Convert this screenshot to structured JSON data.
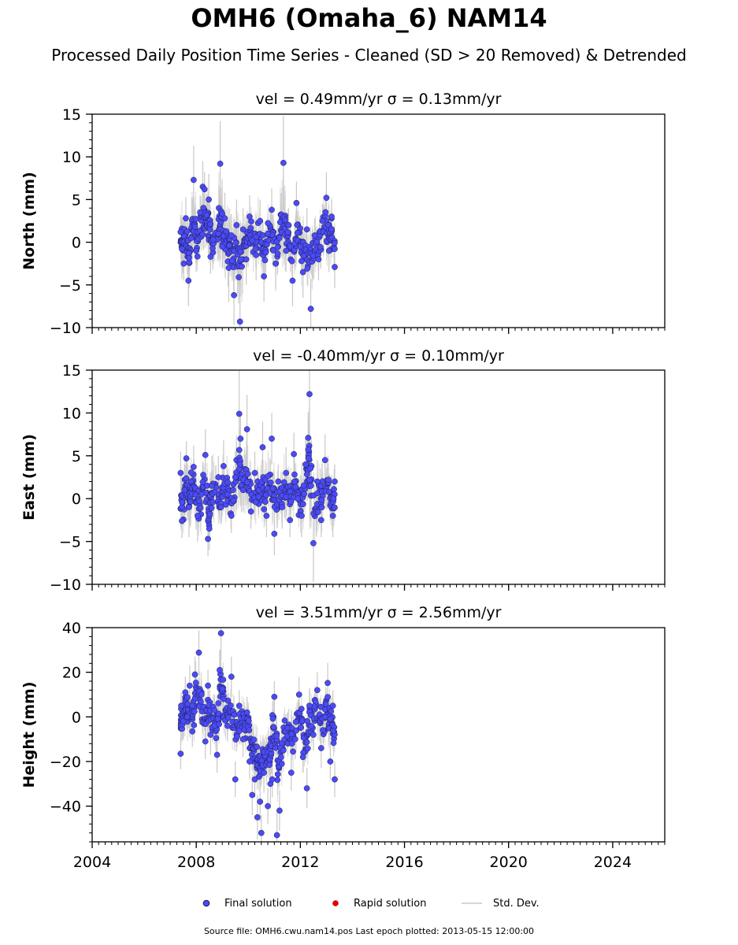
{
  "title": "OMH6 (Omaha_6) NAM14",
  "subtitle": "Processed Daily Position Time Series - Cleaned (SD > 20 Removed) & Detrended",
  "colors": {
    "final": "#4b4bf5",
    "rapid": "#e00000",
    "stddev": "#c8c8c8",
    "edge": "#1a1a4d"
  },
  "legend": {
    "final": "Final solution",
    "rapid": "Rapid solution",
    "stddev": "Std. Dev."
  },
  "footer": "Source file: OMH6.cwu.nam14.pos  Last epoch plotted: 2013-05-15 12:00:00",
  "chart_data": [
    {
      "type": "scatter",
      "component": "north",
      "panel_title": "vel = 0.49mm/yr   σ = 0.13mm/yr",
      "ylabel": "North (mm)",
      "xlim": [
        2004,
        2026
      ],
      "ylim": [
        -10,
        15
      ],
      "yticks": [
        -10,
        -5,
        0,
        5,
        10,
        15
      ],
      "ytick_labels": [
        "−10",
        "−5",
        "0",
        "5",
        "10",
        "15"
      ],
      "xticks": [
        2004,
        2008,
        2012,
        2016,
        2020,
        2024
      ],
      "xtick_labels": [],
      "series": [
        {
          "name": "Final solution",
          "x": [
            2007.4,
            2007.45,
            2007.52,
            2007.6,
            2007.7,
            2007.8,
            2007.9,
            2008.0,
            2008.15,
            2008.25,
            2008.32,
            2008.4,
            2008.48,
            2008.55,
            2008.65,
            2008.85,
            2008.92,
            2009.0,
            2009.1,
            2009.25,
            2009.35,
            2009.45,
            2009.55,
            2009.68,
            2009.8,
            2009.92,
            2010.05,
            2010.15,
            2010.3,
            2010.45,
            2010.6,
            2010.75,
            2010.9,
            2011.05,
            2011.2,
            2011.35,
            2011.45,
            2011.55,
            2011.7,
            2011.85,
            2012.0,
            2012.1,
            2012.25,
            2012.4,
            2012.55,
            2012.7,
            2012.85,
            2013.0,
            2013.1,
            2013.2,
            2013.32
          ],
          "y": [
            1.2,
            -0.8,
            -2.5,
            2.8,
            -4.5,
            0.5,
            7.3,
            -1.0,
            3.5,
            6.5,
            6.2,
            3.2,
            5.0,
            -1.7,
            0.3,
            1.0,
            9.2,
            -0.5,
            2.8,
            -3.0,
            0.8,
            -6.2,
            2.0,
            -9.3,
            1.5,
            -2.0,
            3.0,
            0.2,
            -1.5,
            2.5,
            -4.0,
            1.0,
            3.8,
            -2.5,
            0.5,
            9.3,
            -1.0,
            2.0,
            -4.5,
            4.6,
            -0.5,
            -3.5,
            1.5,
            -7.8,
            0.8,
            -2.0,
            2.5,
            5.2,
            -1.0,
            3.0,
            -2.9
          ],
          "sd": [
            2.0,
            3.5,
            2.0,
            2.5,
            3.0,
            2.0,
            4.0,
            2.5,
            2.0,
            3.0,
            2.0,
            2.5,
            3.0,
            2.0,
            2.5,
            3.0,
            5.0,
            2.5,
            3.0,
            4.0,
            2.5,
            3.5,
            3.0,
            5.0,
            2.5,
            3.0,
            2.5,
            2.0,
            3.0,
            2.5,
            3.0,
            2.0,
            2.5,
            3.0,
            2.5,
            5.5,
            2.5,
            2.0,
            3.0,
            2.5,
            2.0,
            3.0,
            2.5,
            3.5,
            2.0,
            2.5,
            2.0,
            3.0,
            2.5,
            2.0,
            2.5
          ]
        },
        {
          "name": "Rapid solution",
          "x": [],
          "y": []
        }
      ]
    },
    {
      "type": "scatter",
      "component": "east",
      "panel_title": "vel = -0.40mm/yr   σ = 0.10mm/yr",
      "ylabel": "East (mm)",
      "xlim": [
        2004,
        2026
      ],
      "ylim": [
        -10,
        15
      ],
      "yticks": [
        -10,
        -5,
        0,
        5,
        10,
        15
      ],
      "ytick_labels": [
        "−10",
        "−5",
        "0",
        "5",
        "10",
        "15"
      ],
      "xticks": [
        2004,
        2008,
        2012,
        2016,
        2020,
        2024
      ],
      "xtick_labels": [],
      "series": [
        {
          "name": "Final solution",
          "x": [
            2007.4,
            2007.45,
            2007.55,
            2007.62,
            2007.72,
            2007.8,
            2007.9,
            2008.05,
            2008.2,
            2008.35,
            2008.45,
            2008.5,
            2008.6,
            2008.85,
            2008.95,
            2009.05,
            2009.2,
            2009.35,
            2009.5,
            2009.65,
            2009.7,
            2009.8,
            2009.95,
            2010.1,
            2010.25,
            2010.4,
            2010.55,
            2010.7,
            2010.9,
            2011.0,
            2011.15,
            2011.3,
            2011.45,
            2011.6,
            2011.75,
            2011.9,
            2012.05,
            2012.2,
            2012.3,
            2012.35,
            2012.5,
            2012.65,
            2012.8,
            2012.95,
            2013.1,
            2013.25,
            2013.32
          ],
          "y": [
            3.0,
            -2.6,
            1.0,
            4.7,
            -1.0,
            2.0,
            3.7,
            -2.0,
            0.5,
            5.1,
            -4.7,
            -3.5,
            1.5,
            2.5,
            -1.0,
            3.8,
            0.5,
            -2.0,
            2.5,
            9.9,
            7.0,
            1.0,
            8.1,
            -1.5,
            3.0,
            0.2,
            6.0,
            -2.0,
            7.0,
            -4.1,
            2.0,
            -1.0,
            3.0,
            -2.5,
            5.2,
            0.0,
            -2.0,
            4.0,
            7.1,
            12.2,
            -5.2,
            2.0,
            -2.5,
            4.5,
            0.8,
            -2.0,
            2.0
          ],
          "sd": [
            2.5,
            2.0,
            3.0,
            2.0,
            3.5,
            2.0,
            2.5,
            3.0,
            2.0,
            3.0,
            2.0,
            2.5,
            3.5,
            2.5,
            2.0,
            3.0,
            2.5,
            2.0,
            3.0,
            5.0,
            3.0,
            2.5,
            4.0,
            2.0,
            2.5,
            2.0,
            3.0,
            2.5,
            3.0,
            2.5,
            2.0,
            2.5,
            3.0,
            2.0,
            2.5,
            2.0,
            2.5,
            3.0,
            3.0,
            6.0,
            4.5,
            2.5,
            2.0,
            3.0,
            2.0,
            2.5,
            2.0
          ]
        },
        {
          "name": "Rapid solution",
          "x": [],
          "y": []
        }
      ]
    },
    {
      "type": "scatter",
      "component": "height",
      "panel_title": "vel = 3.51mm/yr   σ = 2.56mm/yr",
      "ylabel": "Height (mm)",
      "xlim": [
        2004,
        2026
      ],
      "ylim": [
        -56,
        40
      ],
      "yticks": [
        -40,
        -20,
        0,
        20,
        40
      ],
      "ytick_labels": [
        "−40",
        "−20",
        "0",
        "20",
        "40"
      ],
      "xticks": [
        2004,
        2008,
        2012,
        2016,
        2020,
        2024
      ],
      "xtick_labels": [
        "2004",
        "2008",
        "2012",
        "2016",
        "2020",
        "2024"
      ],
      "series": [
        {
          "name": "Final solution",
          "x": [
            2007.4,
            2007.42,
            2007.5,
            2007.58,
            2007.65,
            2007.75,
            2007.85,
            2007.95,
            2008.1,
            2008.2,
            2008.35,
            2008.45,
            2008.55,
            2008.7,
            2008.8,
            2008.9,
            2008.95,
            2009.05,
            2009.2,
            2009.35,
            2009.5,
            2009.65,
            2009.8,
            2009.95,
            2010.05,
            2010.15,
            2010.25,
            2010.35,
            2010.45,
            2010.5,
            2010.6,
            2010.75,
            2010.85,
            2010.92,
            2011.0,
            2011.1,
            2011.2,
            2011.35,
            2011.5,
            2011.65,
            2011.8,
            2011.95,
            2012.1,
            2012.25,
            2012.35,
            2012.5,
            2012.65,
            2012.8,
            2012.95,
            2013.05,
            2013.15,
            2013.25,
            2013.32
          ],
          "y": [
            -16.5,
            5.0,
            -2.0,
            11.0,
            0.0,
            14.0,
            -6.5,
            19.0,
            28.8,
            10.0,
            -11.0,
            14.0,
            -8.0,
            3.0,
            -17.0,
            21.0,
            37.5,
            8.0,
            -4.0,
            18.0,
            -28.0,
            5.0,
            -10.0,
            2.0,
            -20.0,
            -35.0,
            -28.0,
            -45.0,
            -38.0,
            -52.0,
            -25.0,
            -40.0,
            -30.0,
            -28.0,
            9.0,
            -53.0,
            -42.0,
            -15.0,
            -5.0,
            -25.0,
            -10.0,
            10.0,
            -18.0,
            -32.0,
            5.0,
            -8.0,
            12.0,
            -14.0,
            0.0,
            15.2,
            -20.0,
            5.0,
            -28.0
          ],
          "sd": [
            7.0,
            6.0,
            8.0,
            7.0,
            6.0,
            9.0,
            7.0,
            8.0,
            10.0,
            7.0,
            8.0,
            7.0,
            9.0,
            7.0,
            8.0,
            9.0,
            12.0,
            8.0,
            7.0,
            9.0,
            8.0,
            7.0,
            8.0,
            7.0,
            8.0,
            9.0,
            8.0,
            10.0,
            9.0,
            8.0,
            9.0,
            8.0,
            9.0,
            8.0,
            7.0,
            10.0,
            9.0,
            8.0,
            7.0,
            8.0,
            9.0,
            8.0,
            7.0,
            9.0,
            8.0,
            7.0,
            8.0,
            9.0,
            7.0,
            9.0,
            8.0,
            7.0,
            8.0
          ]
        },
        {
          "name": "Rapid solution",
          "x": [],
          "y": []
        }
      ]
    }
  ]
}
